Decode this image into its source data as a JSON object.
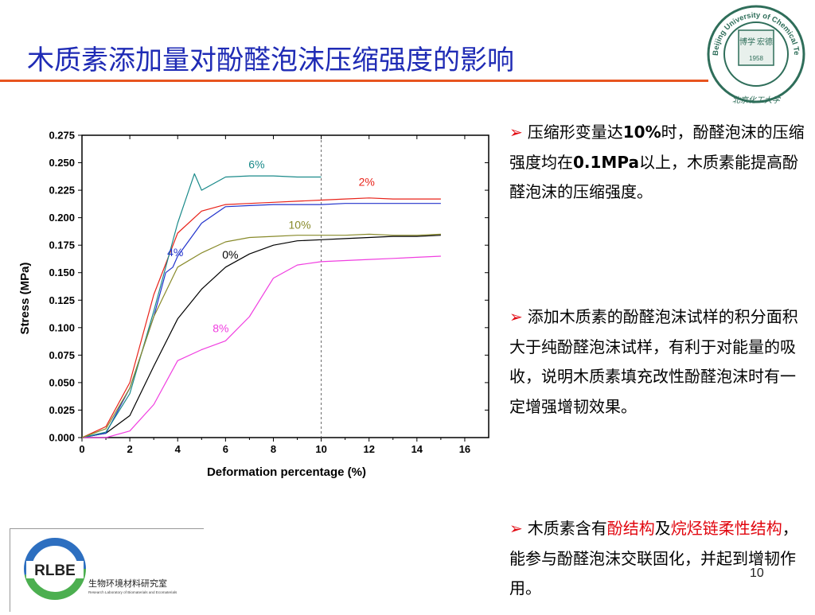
{
  "slide": {
    "title": "木质素添加量对酚醛泡沫压缩强度的影响",
    "page_number": "10"
  },
  "seal": {
    "arc_text": "Beijing University of Chemical Technology",
    "left_text": "博学",
    "right_text": "宏德",
    "year": "1958",
    "bottom_text": "北京化工大学"
  },
  "logo": {
    "acronym": "RLBE",
    "name_cn": "生物环境材料研究室",
    "name_en": "Research Laboratory of Biomaterials and Ecomaterials"
  },
  "bullets": [
    {
      "parts": [
        {
          "text": "压缩形变量达",
          "bold": false
        },
        {
          "text": "10%",
          "bold": true
        },
        {
          "text": "时，酚醛泡沫的压缩强度均在",
          "bold": false
        },
        {
          "text": "0.1MPa",
          "bold": true
        },
        {
          "text": "以上，木质素能提高酚醛泡沫的压缩强度。",
          "bold": false
        }
      ]
    },
    {
      "parts": [
        {
          "text": "添加木质素的酚醛泡沫试样的积分面积大于纯酚醛泡沫试样，有利于对能量的吸收，说明木质素填充改性酚醛泡沫时有一定增强增韧效果。",
          "bold": false
        }
      ]
    },
    {
      "parts": [
        {
          "text": "木质素含有",
          "red": false
        },
        {
          "text": "酚结构",
          "red": true
        },
        {
          "text": "及",
          "red": false
        },
        {
          "text": "烷烃链柔性结构",
          "red": true
        },
        {
          "text": "，能参与酚醛泡沫交联固化，并起到增韧作用。",
          "red": false
        }
      ]
    }
  ],
  "chart_data": {
    "type": "line",
    "xlabel": "Deformation percentage (%)",
    "ylabel": "Stress (MPa)",
    "xlim": [
      0,
      17
    ],
    "ylim": [
      0,
      0.275
    ],
    "xticks": [
      0,
      2,
      4,
      6,
      8,
      10,
      12,
      14,
      16
    ],
    "yticks": [
      "0.000",
      "0.025",
      "0.050",
      "0.075",
      "0.100",
      "0.125",
      "0.150",
      "0.175",
      "0.200",
      "0.225",
      "0.250",
      "0.275"
    ],
    "vline_x": 10,
    "series": [
      {
        "name": "0%",
        "color": "#000000",
        "label_at": [
          6.2,
          0.163
        ],
        "x": [
          0,
          1,
          2,
          3,
          4,
          5,
          6,
          7,
          8,
          9,
          10,
          11,
          12,
          13,
          14,
          15
        ],
        "y": [
          0,
          0.004,
          0.02,
          0.065,
          0.108,
          0.135,
          0.155,
          0.167,
          0.175,
          0.179,
          0.18,
          0.181,
          0.182,
          0.183,
          0.183,
          0.184
        ]
      },
      {
        "name": "2%",
        "color": "#e8231a",
        "label_at": [
          11.9,
          0.229
        ],
        "x": [
          0,
          1,
          2,
          3,
          4,
          5,
          6,
          7,
          8,
          9,
          10,
          11,
          12,
          13,
          14,
          15
        ],
        "y": [
          0,
          0.01,
          0.05,
          0.13,
          0.186,
          0.206,
          0.212,
          0.213,
          0.214,
          0.215,
          0.216,
          0.217,
          0.218,
          0.217,
          0.217,
          0.217
        ]
      },
      {
        "name": "4%",
        "color": "#2233cc",
        "label_at": [
          3.9,
          0.165
        ],
        "x": [
          0,
          1,
          2,
          3,
          3.5,
          3.8,
          4,
          5,
          6,
          7,
          8,
          9,
          10,
          11,
          12,
          13,
          14,
          15
        ],
        "y": [
          0,
          0.004,
          0.045,
          0.11,
          0.15,
          0.155,
          0.165,
          0.195,
          0.21,
          0.211,
          0.212,
          0.212,
          0.212,
          0.213,
          0.213,
          0.213,
          0.213,
          0.213
        ]
      },
      {
        "name": "6%",
        "color": "#1a8a8a",
        "label_at": [
          7.3,
          0.245
        ],
        "x": [
          0,
          1,
          2,
          3,
          4,
          4.7,
          5,
          6,
          7,
          8,
          9,
          10
        ],
        "y": [
          0,
          0.005,
          0.04,
          0.115,
          0.195,
          0.24,
          0.225,
          0.237,
          0.238,
          0.238,
          0.237,
          0.237
        ]
      },
      {
        "name": "8%",
        "color": "#f03ee0",
        "label_at": [
          5.8,
          0.096
        ],
        "x": [
          0,
          1,
          2,
          3,
          4,
          5,
          6,
          7,
          8,
          9,
          10,
          11,
          12,
          13,
          14,
          15
        ],
        "y": [
          0,
          0.0,
          0.006,
          0.03,
          0.07,
          0.08,
          0.088,
          0.11,
          0.145,
          0.157,
          0.16,
          0.161,
          0.162,
          0.163,
          0.164,
          0.165
        ]
      },
      {
        "name": "10%",
        "color": "#888a2a",
        "label_at": [
          9.1,
          0.19
        ],
        "x": [
          0,
          1,
          2,
          3,
          4,
          5,
          6,
          7,
          8,
          9,
          10,
          11,
          12,
          13,
          14,
          15
        ],
        "y": [
          0,
          0.008,
          0.045,
          0.11,
          0.155,
          0.168,
          0.178,
          0.182,
          0.183,
          0.184,
          0.184,
          0.184,
          0.185,
          0.184,
          0.184,
          0.185
        ]
      }
    ]
  }
}
